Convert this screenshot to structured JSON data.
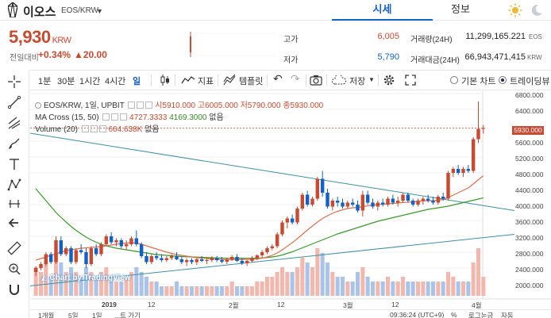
{
  "header": {
    "coin_name": "이오스",
    "pair": "EOS/KRW",
    "tabs": [
      "시세",
      "정보"
    ]
  },
  "ticker": {
    "price": "5,930",
    "unit": "KRW",
    "change_label": "전일대비",
    "change_rate": "+0.34%",
    "change_amount": "▲20.00",
    "high_label": "고가",
    "high_value": "6,005",
    "low_label": "저가",
    "low_value": "5,790",
    "volume_label": "거래량(24H)",
    "volume_value": "11,299,165.221",
    "volume_unit": "EOS",
    "amount_label": "거래대금(24H)",
    "amount_value": "66,943,471,415",
    "amount_unit": "KRW"
  },
  "toolbar": {
    "intervals": [
      "1분",
      "30분",
      "1시간",
      "4시간",
      "일"
    ],
    "indicator": "지표",
    "template": "템플릿",
    "save": "저장",
    "basic_chart": "기본 차트",
    "tradingview": "트레이딩뷰"
  },
  "legend": {
    "main": "EOS/KRW, 1일, UPBIT",
    "o": "시5910.000",
    "h": "고6005.000",
    "l": "저5790.000",
    "c": "종5930.000",
    "ma_label": "MA Cross (15, 50)",
    "ma1": "4727.3333",
    "ma2": "4169.3000",
    "ma_none": "없음",
    "vol_label": "Volume (20)",
    "vol_val": "664.638K",
    "vol_none": "없음"
  },
  "y_axis": [
    "6800.000",
    "6400.000",
    "5930.000",
    "5600.000",
    "5200.000",
    "4800.000",
    "4400.000",
    "4000.000",
    "3600.000",
    "3200.000",
    "2800.000",
    "2400.000",
    "2000.000"
  ],
  "x_axis": [
    "2019",
    "12",
    "2월",
    "12",
    "3월",
    "12",
    "4월"
  ],
  "watermark": "Chart by TradingView",
  "bottom": {
    "ranges": [
      "1개월",
      "5일",
      "1일",
      "...트 가기"
    ],
    "time": "09:36:24 (UTC+9)",
    "pct": "%",
    "log": "로그눈금",
    "auto": "자동"
  },
  "colors": {
    "up": "#c84a31",
    "down": "#1261c4",
    "accent": "#1261c4"
  },
  "chart_data": {
    "type": "candlestick",
    "title": "EOS/KRW, 1일, UPBIT",
    "ylim": [
      1800,
      6900
    ],
    "candles": [
      [
        2300,
        2450,
        2200,
        2400
      ],
      [
        2400,
        2550,
        2350,
        2500
      ],
      [
        2500,
        2800,
        2450,
        2750
      ],
      [
        2750,
        2800,
        2500,
        2550
      ],
      [
        2550,
        3200,
        2500,
        3100
      ],
      [
        3100,
        3200,
        2700,
        2750
      ],
      [
        2750,
        2950,
        2700,
        2900
      ],
      [
        2900,
        2950,
        2500,
        2550
      ],
      [
        2550,
        2900,
        2500,
        2850
      ],
      [
        2850,
        3000,
        2750,
        2800
      ],
      [
        2800,
        2900,
        2400,
        2500
      ],
      [
        2500,
        2950,
        2450,
        2900
      ],
      [
        2900,
        3000,
        2700,
        2750
      ],
      [
        2750,
        3050,
        2700,
        3000
      ],
      [
        3000,
        3250,
        2950,
        3200
      ],
      [
        3200,
        3300,
        3000,
        3050
      ],
      [
        3050,
        3150,
        2950,
        3100
      ],
      [
        3100,
        3150,
        2900,
        2950
      ],
      [
        2950,
        3100,
        2850,
        3000
      ],
      [
        3000,
        3200,
        2950,
        3150
      ],
      [
        3150,
        3350,
        2950,
        3000
      ],
      [
        3000,
        3050,
        2650,
        2700
      ],
      [
        2700,
        2800,
        2500,
        2550
      ],
      [
        2550,
        2750,
        2500,
        2700
      ],
      [
        2700,
        2800,
        2600,
        2650
      ],
      [
        2650,
        2750,
        2550,
        2600
      ],
      [
        2600,
        2700,
        2550,
        2650
      ],
      [
        2650,
        2750,
        2600,
        2700
      ],
      [
        2700,
        2800,
        2600,
        2620
      ],
      [
        2620,
        2700,
        2500,
        2550
      ],
      [
        2550,
        2650,
        2450,
        2600
      ],
      [
        2600,
        2650,
        2500,
        2550
      ],
      [
        2550,
        2650,
        2480,
        2620
      ],
      [
        2620,
        2700,
        2550,
        2580
      ],
      [
        2580,
        2650,
        2500,
        2600
      ],
      [
        2600,
        2700,
        2550,
        2650
      ],
      [
        2650,
        2700,
        2550,
        2600
      ],
      [
        2600,
        2680,
        2520,
        2560
      ],
      [
        2560,
        2650,
        2500,
        2620
      ],
      [
        2620,
        2720,
        2580,
        2680
      ],
      [
        2680,
        2750,
        2550,
        2580
      ],
      [
        2580,
        2650,
        2480,
        2520
      ],
      [
        2520,
        2600,
        2450,
        2580
      ],
      [
        2580,
        2700,
        2550,
        2650
      ],
      [
        2650,
        2750,
        2600,
        2720
      ],
      [
        2720,
        2850,
        2650,
        2800
      ],
      [
        2800,
        2950,
        2750,
        2900
      ],
      [
        2900,
        3000,
        2850,
        2950
      ],
      [
        2950,
        3300,
        2900,
        3250
      ],
      [
        3250,
        3600,
        3200,
        3550
      ],
      [
        3550,
        3700,
        3400,
        3650
      ],
      [
        3650,
        3750,
        3500,
        3550
      ],
      [
        3550,
        3950,
        3500,
        3900
      ],
      [
        3900,
        4300,
        3850,
        4250
      ],
      [
        4250,
        4350,
        3950,
        4000
      ],
      [
        4000,
        4200,
        3950,
        4150
      ],
      [
        4150,
        4700,
        4100,
        4650
      ],
      [
        4650,
        4850,
        4200,
        4300
      ],
      [
        4300,
        4400,
        3900,
        3950
      ],
      [
        3950,
        4150,
        3850,
        4100
      ],
      [
        4100,
        4200,
        3950,
        4050
      ],
      [
        4050,
        4150,
        3900,
        3950
      ],
      [
        3950,
        4100,
        3900,
        4050
      ],
      [
        4050,
        4150,
        3950,
        4000
      ],
      [
        4000,
        4100,
        3800,
        3850
      ],
      [
        3850,
        4350,
        3700,
        4250
      ],
      [
        4250,
        4350,
        4000,
        4050
      ],
      [
        4050,
        4150,
        3900,
        3950
      ],
      [
        3950,
        4100,
        3850,
        4050
      ],
      [
        4050,
        4150,
        3950,
        4000
      ],
      [
        4000,
        4200,
        3950,
        4150
      ],
      [
        4150,
        4250,
        4000,
        4050
      ],
      [
        4050,
        4200,
        3950,
        4100
      ],
      [
        4100,
        4300,
        4050,
        4250
      ],
      [
        4250,
        4300,
        4050,
        4100
      ],
      [
        4100,
        4150,
        3950,
        4000
      ],
      [
        4000,
        4150,
        3950,
        4100
      ],
      [
        4100,
        4200,
        4000,
        4150
      ],
      [
        4150,
        4250,
        4050,
        4100
      ],
      [
        4100,
        4200,
        4000,
        4050
      ],
      [
        4050,
        4250,
        4000,
        4200
      ],
      [
        4200,
        4300,
        4100,
        4150
      ],
      [
        4150,
        4850,
        4100,
        4800
      ],
      [
        4800,
        4950,
        4700,
        4900
      ],
      [
        4900,
        5000,
        4750,
        4800
      ],
      [
        4800,
        4950,
        4700,
        4900
      ],
      [
        4900,
        5000,
        4800,
        4850
      ],
      [
        4850,
        5700,
        4800,
        5650
      ],
      [
        5650,
        6600,
        5550,
        5910
      ],
      [
        5910,
        6005,
        5790,
        5930
      ]
    ],
    "ma15": [
      2600,
      2640,
      2680,
      2720,
      2760,
      2800,
      2840,
      2860,
      2880,
      2900,
      2910,
      2920,
      2930,
      2940,
      2960,
      2980,
      3000,
      3020,
      3030,
      3040,
      3030,
      3000,
      2960,
      2920,
      2880,
      2840,
      2800,
      2770,
      2740,
      2720,
      2700,
      2680,
      2660,
      2650,
      2640,
      2630,
      2620,
      2615,
      2610,
      2610,
      2612,
      2615,
      2618,
      2620,
      2630,
      2650,
      2680,
      2720,
      2780,
      2860,
      2950,
      3040,
      3140,
      3250,
      3360,
      3460,
      3560,
      3650,
      3720,
      3780,
      3830,
      3870,
      3900,
      3920,
      3930,
      3950,
      3970,
      3985,
      4000,
      4010,
      4020,
      4030,
      4040,
      4050,
      4060,
      4070,
      4080,
      4090,
      4100,
      4100,
      4110,
      4130,
      4180,
      4240,
      4300,
      4360,
      4420,
      4520,
      4630,
      4727
    ],
    "ma50": [
      4400,
      4250,
      4100,
      3950,
      3800,
      3680,
      3560,
      3450,
      3350,
      3260,
      3180,
      3110,
      3050,
      3000,
      2960,
      2930,
      2900,
      2880,
      2860,
      2840,
      2820,
      2800,
      2780,
      2760,
      2740,
      2730,
      2720,
      2710,
      2700,
      2690,
      2685,
      2680,
      2675,
      2670,
      2665,
      2660,
      2655,
      2650,
      2648,
      2646,
      2645,
      2645,
      2646,
      2648,
      2650,
      2655,
      2665,
      2680,
      2700,
      2730,
      2770,
      2810,
      2860,
      2910,
      2960,
      3010,
      3060,
      3110,
      3160,
      3210,
      3260,
      3300,
      3340,
      3380,
      3420,
      3460,
      3500,
      3540,
      3580,
      3610,
      3640,
      3670,
      3700,
      3730,
      3760,
      3790,
      3820,
      3850,
      3880,
      3900,
      3920,
      3940,
      3960,
      3990,
      4020,
      4050,
      4080,
      4110,
      4140,
      4169
    ],
    "volumes": [
      0.6,
      0.5,
      0.7,
      0.4,
      0.9,
      0.7,
      0.5,
      0.6,
      0.5,
      0.4,
      0.6,
      0.5,
      0.4,
      0.5,
      0.6,
      0.4,
      0.3,
      0.3,
      0.4,
      0.5,
      0.6,
      0.5,
      0.4,
      0.3,
      0.3,
      0.2,
      0.2,
      0.2,
      0.3,
      0.2,
      0.2,
      0.2,
      0.2,
      0.2,
      0.2,
      0.2,
      0.2,
      0.2,
      0.2,
      0.3,
      0.2,
      0.2,
      0.2,
      0.2,
      0.3,
      0.3,
      0.4,
      0.4,
      0.5,
      0.6,
      0.5,
      0.5,
      0.6,
      0.8,
      0.7,
      0.6,
      1.0,
      0.9,
      0.7,
      0.5,
      0.4,
      0.4,
      0.3,
      0.3,
      0.5,
      0.6,
      0.4,
      0.3,
      0.3,
      0.3,
      0.4,
      0.3,
      0.3,
      0.4,
      0.3,
      0.3,
      0.3,
      0.3,
      0.3,
      0.3,
      0.3,
      0.3,
      0.5,
      0.4,
      0.3,
      0.3,
      0.3,
      0.7,
      1.0,
      0.4
    ]
  }
}
